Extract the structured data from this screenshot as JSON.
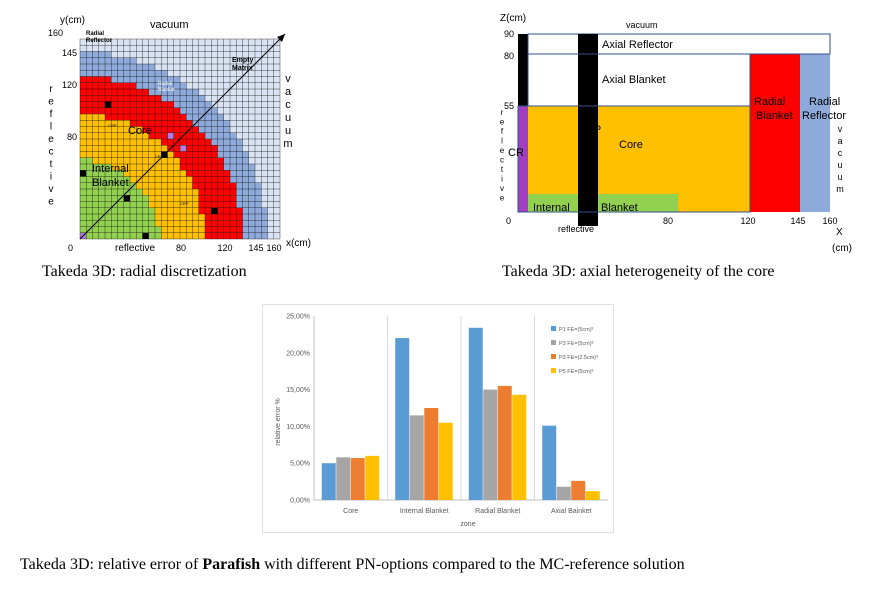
{
  "figures": {
    "radial": {
      "caption": "Takeda 3D: radial discretization",
      "y_axis_label": "y(cm)",
      "x_axis_label": "x(cm)",
      "top_label": "vacuum",
      "bottom_label": "reflective",
      "left_label": "reflective",
      "right_label": "vacuum",
      "x_ticks": [
        "0",
        "80",
        "120",
        "145",
        "160"
      ],
      "y_ticks": [
        "160",
        "145",
        "120",
        "80"
      ],
      "zones": {
        "radial_reflector": "Radial Reflector",
        "empty_matrix": "Empty Matrix",
        "radial_blanket": "Radial Blanket",
        "core": "Core",
        "internal_blanket": "Internal Blanket",
        "crp": "CRP",
        "cr": "CR"
      },
      "colors": {
        "reflector": "#8eaadb",
        "empty_matrix": "#dae3f3",
        "blanket": "#ff0000",
        "core": "#ffc000",
        "internal_blanket": "#92d050",
        "cr": "#b07ce0",
        "crp": "#000000"
      }
    },
    "axial": {
      "caption": "Takeda 3D: axial heterogeneity of the core",
      "z_axis_label": "Z(cm)",
      "x_axis_label": "X",
      "x_axis_unit": "(cm)",
      "top_label": "vacuum",
      "bottom_label": "reflective",
      "left_label": "reflective",
      "right_label": "vacuum",
      "z_ticks": [
        "90",
        "80",
        "55",
        "0"
      ],
      "x_ticks": [
        "0",
        "80",
        "120",
        "145",
        "160"
      ],
      "zones": {
        "axial_reflector": "Axial Reflector",
        "axial_blanket": "Axial Blanket",
        "core": "Core",
        "crp": "CRP",
        "cr": "CR",
        "radial_blanket": "Radial Blanket",
        "radial_reflector": "Radial Reflector",
        "internal": "Internal",
        "blanket": "Blanket"
      },
      "colors": {
        "core": "#ffc000",
        "radial_blanket": "#ff0000",
        "radial_reflector": "#8eaadb",
        "internal_blanket": "#92d050",
        "cr": "#a040c0",
        "crp": "#000000"
      }
    },
    "error_chart": {
      "caption_prefix": "Takeda 3D: relative error of ",
      "caption_bold": "Parafish",
      "caption_suffix": " with different PN-options compared to the MC-reference solution"
    }
  },
  "chart_data": {
    "type": "bar",
    "xlabel": "zone",
    "ylabel": "relative error %",
    "categories": [
      "Core",
      "Internal Blanket",
      "Radial Blanket",
      "Axial Bainket"
    ],
    "y_ticks": [
      "0,00%",
      "5,00%",
      "10,00%",
      "15,00%",
      "20,00%",
      "25,00%"
    ],
    "ylim": [
      0,
      25
    ],
    "grid": false,
    "legend_position": "right",
    "series": [
      {
        "name": "P1 FE=(5cm)³",
        "color": "#5b9bd5",
        "values": [
          5.0,
          22.0,
          23.4,
          10.1
        ]
      },
      {
        "name": "P3 FE=(5cm)³",
        "color": "#a5a5a5",
        "values": [
          5.8,
          11.5,
          15.0,
          1.8
        ]
      },
      {
        "name": "P3 FE=(2.5cm)³",
        "color": "#ed7d31",
        "values": [
          5.7,
          12.5,
          15.5,
          2.6
        ]
      },
      {
        "name": "P5 FE=(5cm)³",
        "color": "#ffc000",
        "values": [
          6.0,
          10.5,
          14.3,
          1.2
        ]
      }
    ]
  }
}
